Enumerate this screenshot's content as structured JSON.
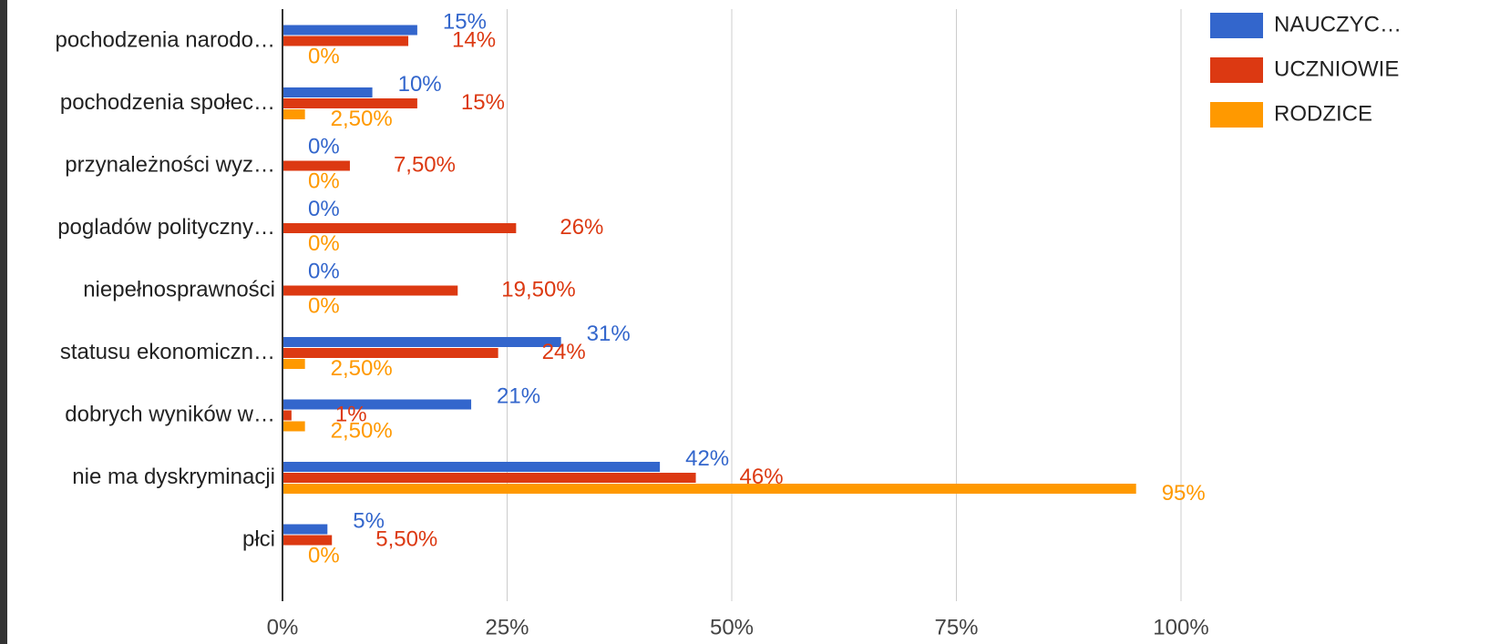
{
  "chart_data": {
    "type": "bar",
    "orientation": "horizontal",
    "categories": [
      "pochodzenia narodo…",
      "pochodzenia społec…",
      "przynależności wyz…",
      "pogladów polityczny…",
      "niepełnosprawności",
      "statusu ekonomiczn…",
      "dobrych wyników w…",
      "nie ma dyskryminacji",
      "płci"
    ],
    "series": [
      {
        "name": "NAUCZYC…",
        "color": "#3366cc",
        "values": [
          15,
          10,
          0,
          0,
          0,
          31,
          21,
          42,
          5
        ],
        "value_labels": [
          "15%",
          "10%",
          "0%",
          "0%",
          "0%",
          "31%",
          "21%",
          "42%",
          "5%"
        ]
      },
      {
        "name": "UCZNIOWIE",
        "color": "#dc3912",
        "values": [
          14,
          15,
          7.5,
          26,
          19.5,
          24,
          1,
          46,
          5.5
        ],
        "value_labels": [
          "14%",
          "15%",
          "7,50%",
          "26%",
          "19,50%",
          "24%",
          "1%",
          "46%",
          "5,50%"
        ]
      },
      {
        "name": "RODZICE",
        "color": "#ff9900",
        "values": [
          0,
          2.5,
          0,
          0,
          0,
          2.5,
          2.5,
          95,
          0
        ],
        "value_labels": [
          "0%",
          "2,50%",
          "0%",
          "0%",
          "0%",
          "2,50%",
          "2,50%",
          "95%",
          "0%"
        ]
      }
    ],
    "xlim": [
      0,
      100
    ],
    "xticks": [
      {
        "value": 0,
        "label": "0%"
      },
      {
        "value": 25,
        "label": "25%"
      },
      {
        "value": 50,
        "label": "50%"
      },
      {
        "value": 75,
        "label": "75%"
      },
      {
        "value": 100,
        "label": "100%"
      }
    ],
    "grid": true,
    "legend": "right"
  }
}
